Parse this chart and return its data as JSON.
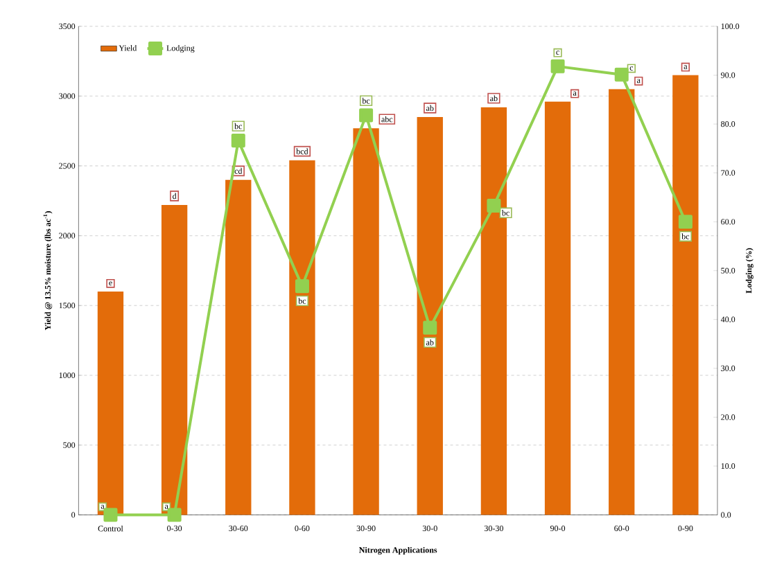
{
  "chart_data": {
    "type": "bar",
    "xlabel": "Nitrogen Applications",
    "ylabel": "Yield @ 13.5% moisture (lbs ac$^{-1}$)",
    "y2label": "Lodging (%)",
    "categories": [
      "Control",
      "0-30",
      "30-60",
      "0-60",
      "30-90",
      "30-0",
      "30-30",
      "90-0",
      "60-0",
      "0-90"
    ],
    "series": [
      {
        "name": "Yield",
        "color": "#e36c0a",
        "values": [
          1600,
          2220,
          2400,
          2540,
          2770,
          2850,
          2920,
          2960,
          3050,
          3150
        ]
      },
      {
        "name": "Lodging",
        "type": "line",
        "axis": "y2",
        "color": "#92d050",
        "values": [
          0,
          0,
          76.6,
          46.8,
          81.8,
          38.3,
          63.3,
          91.8,
          90.1,
          60.0
        ]
      }
    ],
    "ylim": [
      0,
      3500
    ],
    "yticks": [
      0,
      500,
      1000,
      1500,
      2000,
      2500,
      3000,
      3500
    ],
    "y2lim": [
      0,
      100
    ],
    "y2ticks": [
      {
        "value": 0,
        "label": "0.0"
      },
      {
        "value": 10,
        "label": "10.0"
      },
      {
        "value": 20,
        "label": "20.0"
      },
      {
        "value": 30,
        "label": "30.0"
      },
      {
        "value": 40,
        "label": "40.0"
      },
      {
        "value": 50,
        "label": "50.0"
      },
      {
        "value": 60,
        "label": "60.0"
      },
      {
        "value": 70,
        "label": "70.0"
      },
      {
        "value": 80,
        "label": "80.0"
      },
      {
        "value": 90,
        "label": "90.0"
      },
      {
        "value": 100,
        "label": "100.0"
      }
    ],
    "grid": "y",
    "legend": "top left",
    "marker": "square",
    "line_style": "solid",
    "annotations": [
      {
        "text": "e",
        "x": "Control",
        "y": 1600
      },
      {
        "text": "d",
        "x": "0-30",
        "y": 2220
      },
      {
        "text": "cd",
        "x": "30-60",
        "y": 2400
      },
      {
        "text": "bcd",
        "x": "0-60",
        "y": 2540
      },
      {
        "text": "abc",
        "x": "30-90",
        "y": 2770
      },
      {
        "text": "ab",
        "x": "30-0",
        "y": 2850
      },
      {
        "text": "ab",
        "x": "30-30",
        "y": 2920
      },
      {
        "text": "a",
        "x": "90-0",
        "y": 2960
      },
      {
        "text": "a",
        "x": "60-0",
        "y": 3050
      },
      {
        "text": "a",
        "x": "0-90",
        "y": 3150
      },
      {
        "text": "a",
        "x": "Control"
      },
      {
        "text": "a",
        "x": "0-30"
      },
      {
        "text": "bc",
        "x": "30-60"
      },
      {
        "text": "bc",
        "x": "0-60"
      },
      {
        "text": "bc",
        "x": "30-90"
      },
      {
        "text": "ab",
        "x": "30-0"
      },
      {
        "text": "bc",
        "x": "30-30"
      },
      {
        "text": "c",
        "x": "90-0"
      },
      {
        "text": "c",
        "x": "60-0"
      },
      {
        "text": "bc",
        "x": "0-90"
      }
    ]
  }
}
